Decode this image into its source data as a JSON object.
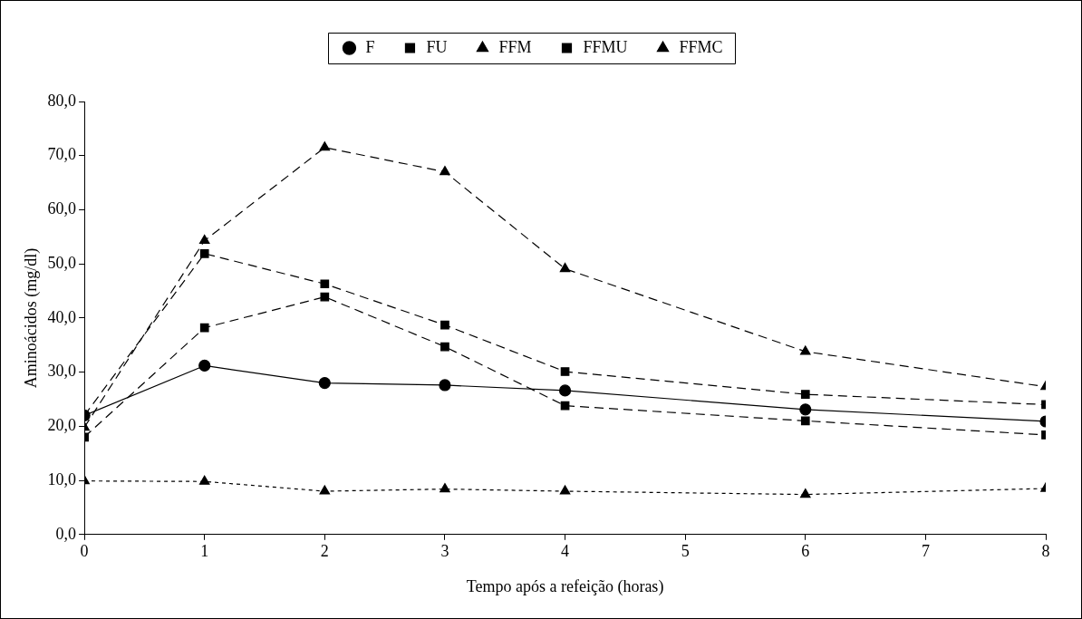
{
  "chart_data": {
    "type": "line",
    "xlabel": "Tempo após a refeição (horas)",
    "ylabel": "Aminoácidos (mg/dl)",
    "xlim": [
      0,
      8
    ],
    "xticks": [
      0,
      1,
      2,
      3,
      4,
      5,
      6,
      7,
      8
    ],
    "ylim": [
      0,
      80
    ],
    "yticks": [
      {
        "value": 0,
        "label": "0,0"
      },
      {
        "value": 10,
        "label": "10,0"
      },
      {
        "value": 20,
        "label": "20,0"
      },
      {
        "value": 30,
        "label": "30,0"
      },
      {
        "value": 40,
        "label": "40,0"
      },
      {
        "value": 50,
        "label": "50,0"
      },
      {
        "value": 60,
        "label": "60,0"
      },
      {
        "value": 70,
        "label": "70,0"
      },
      {
        "value": 80,
        "label": "80,0"
      }
    ],
    "grid": false,
    "legend": "top",
    "series": [
      {
        "name": "F",
        "color": "#000000",
        "marker": "circle",
        "line_style": "solid",
        "x": [
          0,
          1,
          2,
          3,
          4,
          6,
          8
        ],
        "values": [
          22,
          31.2,
          28,
          27.6,
          26.6,
          23.1,
          20.9
        ]
      },
      {
        "name": "FU",
        "color": "#000000",
        "marker": "square",
        "line_style": "dashed",
        "x": [
          0,
          1,
          2,
          3,
          4,
          6,
          8
        ],
        "values": [
          18,
          38.2,
          43.9,
          34.7,
          23.8,
          21,
          18.4
        ]
      },
      {
        "name": "FFM",
        "color": "#000000",
        "marker": "triangle",
        "line_style": "dotted",
        "x": [
          0,
          1,
          2,
          3,
          4,
          6,
          8
        ],
        "values": [
          9.9,
          9.8,
          8,
          8.4,
          8,
          7.4,
          8.5
        ]
      },
      {
        "name": "FFMU",
        "color": "#000000",
        "marker": "square",
        "line_style": "dashed",
        "x": [
          0,
          1,
          2,
          3,
          4,
          6,
          8
        ],
        "values": [
          22,
          51.9,
          46.3,
          38.7,
          30.1,
          25.9,
          24
        ]
      },
      {
        "name": "FFMC",
        "color": "#000000",
        "marker": "triangle",
        "line_style": "dashed",
        "x": [
          0,
          1,
          2,
          3,
          4,
          6,
          8
        ],
        "values": [
          19.8,
          54.3,
          71.5,
          67,
          49.1,
          33.8,
          27.3
        ]
      }
    ]
  }
}
